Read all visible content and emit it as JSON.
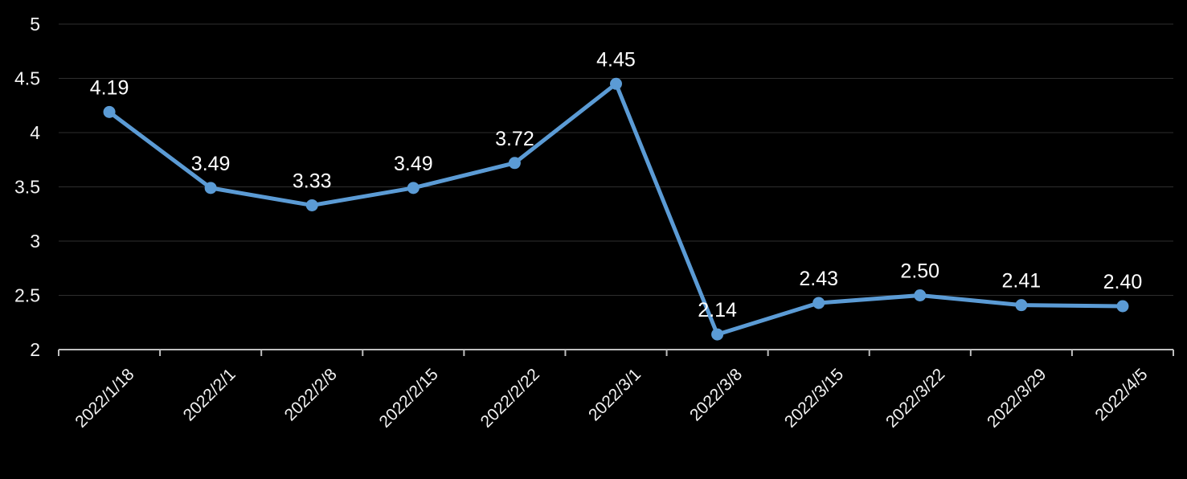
{
  "chart_data": {
    "type": "line",
    "title": "",
    "xlabel": "",
    "ylabel": "",
    "categories": [
      "2022/1/18",
      "2022/2/1",
      "2022/2/8",
      "2022/2/15",
      "2022/2/22",
      "2022/3/1",
      "2022/3/8",
      "2022/3/15",
      "2022/3/22",
      "2022/3/29",
      "2022/4/5"
    ],
    "values": [
      4.19,
      3.49,
      3.33,
      3.49,
      3.72,
      4.45,
      2.14,
      2.43,
      2.5,
      2.41,
      2.4
    ],
    "data_labels": [
      "4.19",
      "3.49",
      "3.33",
      "3.49",
      "3.72",
      "4.45",
      "2.14",
      "2.43",
      "2.50",
      "2.41",
      "2.40"
    ],
    "ylim": [
      2,
      5
    ],
    "y_ticks": [
      2,
      2.5,
      3,
      3.5,
      4,
      4.5,
      5
    ],
    "y_tick_labels": [
      "2",
      "2.5",
      "3",
      "3.5",
      "4",
      "4.5",
      "5"
    ],
    "grid": true,
    "legend": "none",
    "colors": {
      "background": "#000000",
      "line": "#5b9bd5",
      "marker": "#5b9bd5",
      "data_label": "#ffffff",
      "tick_label": "#f2f2f2",
      "axis": "#bfbfbf",
      "gridline": "#2e2e2e"
    }
  }
}
